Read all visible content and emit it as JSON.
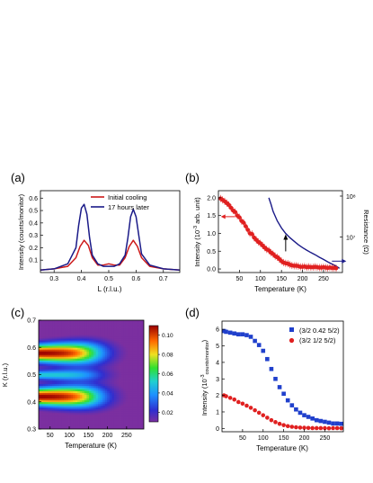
{
  "figure": {
    "panel_labels": [
      "(a)",
      "(b)",
      "(c)",
      "(d)"
    ]
  },
  "chart_data": [
    {
      "panel": "(a)",
      "type": "line",
      "xlabel": "L (r.l.u.)",
      "ylabel": "Intensity (counts/monitor)",
      "xlim": [
        0.25,
        0.76
      ],
      "ylim": [
        0.0,
        0.66
      ],
      "xticks": [
        0.3,
        0.4,
        0.5,
        0.6,
        0.7
      ],
      "yticks": [
        0.1,
        0.2,
        0.3,
        0.4,
        0.5,
        0.6
      ],
      "legend_position": "top-right",
      "series": [
        {
          "name": "Initial cooling",
          "color": "#cc1a1a",
          "x": [
            0.25,
            0.3,
            0.35,
            0.38,
            0.395,
            0.41,
            0.425,
            0.44,
            0.46,
            0.48,
            0.5,
            0.52,
            0.54,
            0.56,
            0.575,
            0.59,
            0.605,
            0.62,
            0.65,
            0.7,
            0.76
          ],
          "y": [
            0.02,
            0.03,
            0.05,
            0.12,
            0.21,
            0.26,
            0.22,
            0.12,
            0.06,
            0.06,
            0.07,
            0.06,
            0.06,
            0.12,
            0.21,
            0.26,
            0.21,
            0.12,
            0.05,
            0.03,
            0.02
          ]
        },
        {
          "name": "17 hours later",
          "color": "#1a1a88",
          "x": [
            0.25,
            0.3,
            0.35,
            0.38,
            0.39,
            0.4,
            0.41,
            0.42,
            0.43,
            0.44,
            0.46,
            0.48,
            0.5,
            0.52,
            0.54,
            0.56,
            0.57,
            0.58,
            0.59,
            0.6,
            0.61,
            0.62,
            0.65,
            0.7,
            0.76
          ],
          "y": [
            0.02,
            0.03,
            0.07,
            0.2,
            0.38,
            0.52,
            0.55,
            0.47,
            0.28,
            0.14,
            0.07,
            0.05,
            0.05,
            0.05,
            0.07,
            0.14,
            0.28,
            0.45,
            0.51,
            0.45,
            0.3,
            0.15,
            0.06,
            0.03,
            0.02
          ]
        }
      ]
    },
    {
      "panel": "(b)",
      "type": "scatter",
      "xlabel": "Temperature (K)",
      "ylabel": "Intensity (10-3 arb. unit)",
      "ylabel2": "Resistance (Ω)",
      "xlim": [
        0,
        295
      ],
      "ylim": [
        -0.1,
        2.2
      ],
      "xticks": [
        50,
        100,
        150,
        200,
        250
      ],
      "yticks": [
        0.0,
        0.5,
        1.0,
        1.5,
        2.0
      ],
      "y2_ticks": [
        "10⁷",
        "10⁸"
      ],
      "series": [
        {
          "name": "",
          "color": "#e02020",
          "marker": "circle",
          "x": [
            5,
            10,
            15,
            20,
            25,
            30,
            35,
            40,
            45,
            50,
            55,
            60,
            65,
            70,
            75,
            80,
            85,
            90,
            95,
            100,
            105,
            110,
            115,
            120,
            125,
            130,
            135,
            140,
            145,
            150,
            155,
            160,
            165,
            170,
            175,
            180,
            185,
            190,
            195,
            200,
            205,
            210,
            215,
            220,
            225,
            230,
            235,
            240,
            245,
            250,
            255,
            260,
            265,
            270,
            275,
            280
          ],
          "y": [
            1.98,
            1.94,
            1.9,
            1.85,
            1.8,
            1.72,
            1.64,
            1.6,
            1.5,
            1.45,
            1.35,
            1.3,
            1.2,
            1.1,
            1.0,
            0.98,
            0.88,
            0.82,
            0.76,
            0.72,
            0.66,
            0.6,
            0.55,
            0.52,
            0.46,
            0.42,
            0.36,
            0.33,
            0.28,
            0.22,
            0.18,
            0.16,
            0.15,
            0.12,
            0.1,
            0.09,
            0.09,
            0.08,
            0.06,
            0.06,
            0.07,
            0.05,
            0.06,
            0.05,
            0.05,
            0.06,
            0.05,
            0.04,
            0.04,
            0.05,
            0.04,
            0.03,
            0.04,
            0.03,
            0.03,
            0.02
          ]
        },
        {
          "name": "",
          "color": "#1a1a88",
          "axis": "right",
          "x": [
            120,
            125,
            130,
            140,
            150,
            160,
            170,
            180,
            190,
            200,
            210,
            220,
            230,
            240,
            250,
            260,
            270,
            280,
            288
          ],
          "y": [
            2.0,
            1.82,
            1.62,
            1.35,
            1.15,
            1.0,
            0.88,
            0.78,
            0.68,
            0.6,
            0.53,
            0.46,
            0.4,
            0.33,
            0.27,
            0.2,
            0.14,
            0.08,
            0.02
          ]
        }
      ],
      "annotations": [
        {
          "type": "arrow",
          "direction": "left",
          "color": "#e02020",
          "x": 40,
          "y": 1.47
        },
        {
          "type": "arrow",
          "direction": "right",
          "color": "#1a1a88",
          "x": 270,
          "y": 0.22
        },
        {
          "type": "arrow",
          "direction": "up",
          "color": "#000000",
          "x": 160,
          "y": 0.95
        }
      ]
    },
    {
      "panel": "(c)",
      "type": "heatmap",
      "xlabel": "Temperature (K)",
      "ylabel": "K (r.l.u.)",
      "xlim": [
        20,
        295
      ],
      "ylim": [
        0.3,
        0.7
      ],
      "xticks": [
        50,
        100,
        150,
        200,
        250
      ],
      "yticks": [
        0.3,
        0.4,
        0.5,
        0.6,
        0.7
      ],
      "colorbar_ticks": [
        0.02,
        0.04,
        0.06,
        0.08,
        0.1
      ],
      "colorbar_range": [
        0.01,
        0.11
      ],
      "ridges": [
        {
          "k": 0.42,
          "peak_value": 0.105,
          "width": 0.022
        },
        {
          "k": 0.5,
          "peak_value": 0.045,
          "width": 0.012
        },
        {
          "k": 0.58,
          "peak_value": 0.105,
          "width": 0.022
        }
      ],
      "background_value": 0.006
    },
    {
      "panel": "(d)",
      "type": "scatter",
      "xlabel": "Temperature (K)",
      "ylabel": "Intensity (10-3 counts/monitor)",
      "xlim": [
        0,
        295
      ],
      "ylim": [
        -0.2,
        6.5
      ],
      "xticks": [
        50,
        100,
        150,
        200,
        250
      ],
      "yticks": [
        0,
        1,
        2,
        3,
        4,
        5,
        6
      ],
      "legend_position": "top-right",
      "series": [
        {
          "name": "(3/2 0.42 5/2)",
          "color": "#2040cc",
          "marker": "square",
          "x": [
            5,
            10,
            20,
            30,
            40,
            50,
            60,
            70,
            80,
            90,
            100,
            110,
            120,
            130,
            140,
            150,
            160,
            170,
            180,
            190,
            200,
            210,
            220,
            230,
            240,
            250,
            260,
            270,
            280,
            290
          ],
          "y": [
            5.9,
            5.85,
            5.8,
            5.75,
            5.7,
            5.7,
            5.65,
            5.55,
            5.3,
            5.05,
            4.7,
            4.2,
            3.6,
            3.0,
            2.5,
            2.1,
            1.7,
            1.4,
            1.15,
            0.95,
            0.8,
            0.7,
            0.6,
            0.5,
            0.45,
            0.4,
            0.35,
            0.3,
            0.3,
            0.28
          ]
        },
        {
          "name": "(3/2 1/2 5/2)",
          "color": "#e02020",
          "marker": "circle",
          "x": [
            5,
            10,
            20,
            30,
            40,
            50,
            60,
            70,
            80,
            90,
            100,
            110,
            120,
            130,
            140,
            150,
            160,
            170,
            180,
            190,
            200,
            210,
            220,
            230,
            240,
            250,
            260,
            270,
            280,
            290
          ],
          "y": [
            2.0,
            1.95,
            1.85,
            1.75,
            1.6,
            1.5,
            1.38,
            1.25,
            1.1,
            0.95,
            0.8,
            0.65,
            0.5,
            0.38,
            0.28,
            0.2,
            0.14,
            0.1,
            0.07,
            0.05,
            0.04,
            0.03,
            0.02,
            0.02,
            0.02,
            0.02,
            0.01,
            0.02,
            0.02,
            0.01
          ]
        }
      ]
    }
  ]
}
